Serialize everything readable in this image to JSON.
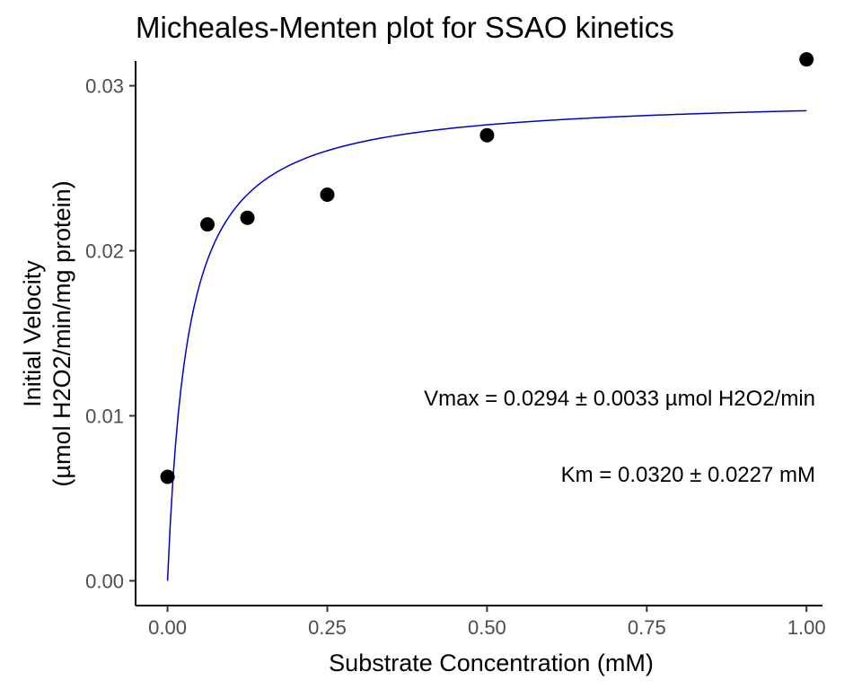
{
  "chart_data": {
    "type": "scatter",
    "title": "Micheales-Menten plot for SSAO kinetics",
    "xlabel": "Substrate Concentration (mM)",
    "ylabel_line1": "Initial Velocity",
    "ylabel_line2": "(µmol H2O2/min/mg protein)",
    "xlim": [
      -0.05,
      1.025
    ],
    "ylim": [
      -0.0015,
      0.0315
    ],
    "x_ticks": [
      0.0,
      0.25,
      0.5,
      0.75,
      1.0
    ],
    "x_tick_labels": [
      "0.00",
      "0.25",
      "0.50",
      "0.75",
      "1.00"
    ],
    "y_ticks": [
      0.0,
      0.01,
      0.02,
      0.03
    ],
    "y_tick_labels": [
      "0.00",
      "0.01",
      "0.02",
      "0.03"
    ],
    "grid": false,
    "points": {
      "x": [
        0.0,
        0.0625,
        0.125,
        0.25,
        0.5,
        1.0
      ],
      "y": [
        0.0063,
        0.0216,
        0.022,
        0.0234,
        0.027,
        0.0316
      ],
      "color": "#000000"
    },
    "fit": {
      "model": "michaelis-menten",
      "vmax": 0.0294,
      "km": 0.032,
      "color": "#0000cc"
    },
    "annotations": [
      "Vmax = 0.0294 ± 0.0033 µmol H2O2/min",
      "Km = 0.0320 ± 0.0227 mM"
    ]
  }
}
